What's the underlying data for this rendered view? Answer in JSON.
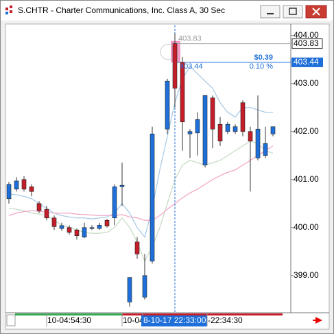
{
  "window": {
    "title": "S.CHTR - Charter Communications, Inc. Class A, 30 Sec"
  },
  "chart_data": {
    "type": "candlestick",
    "open": [
      400.6,
      400.8,
      401.0,
      400.85,
      400.5,
      400.38,
      400.2,
      399.98,
      400.0,
      399.95,
      399.8,
      399.98,
      399.98,
      400.15,
      400.2,
      400.85,
      398.45,
      399.7,
      398.55,
      399.3,
      null,
      402.05,
      403.83,
      403.44,
      401.95,
      401.97,
      401.3,
      402.7,
      402.15,
      402.0,
      402.0,
      402.6,
      402.0,
      401.45,
      401.5,
      401.95
    ],
    "high": [
      400.95,
      401.05,
      401.07,
      400.9,
      400.55,
      400.45,
      400.25,
      400.1,
      400.05,
      399.98,
      400.1,
      400.05,
      400.1,
      400.18,
      400.9,
      401.35,
      398.96,
      399.8,
      399.45,
      402.1,
      null,
      403.1,
      404.05,
      403.55,
      402.05,
      402.4,
      402.75,
      402.75,
      402.3,
      402.2,
      402.15,
      402.65,
      402.1,
      402.75,
      402.1,
      402.1
    ],
    "low": [
      400.5,
      400.75,
      400.75,
      400.65,
      400.3,
      400.15,
      399.95,
      399.93,
      399.85,
      399.75,
      399.78,
      399.95,
      399.95,
      400.0,
      400.05,
      400.45,
      398.35,
      399.35,
      398.5,
      399.25,
      null,
      401.95,
      402.5,
      401.6,
      401.45,
      401.5,
      401.25,
      401.65,
      401.7,
      401.95,
      401.95,
      401.9,
      400.75,
      401.4,
      401.45,
      401.9
    ],
    "close": [
      400.9,
      400.97,
      400.8,
      400.75,
      400.35,
      400.2,
      400.02,
      400.04,
      399.9,
      399.83,
      400.0,
      400.0,
      400.05,
      400.03,
      400.85,
      400.88,
      398.96,
      399.45,
      399.0,
      401.95,
      null,
      403.05,
      402.9,
      402.2,
      402.0,
      402.25,
      402.75,
      402.05,
      401.8,
      402.15,
      402.1,
      402.0,
      401.8,
      402.05,
      401.75,
      402.1
    ],
    "up_color": "#1e6fd9",
    "down_color": "#c41e2a",
    "lines": [
      {
        "color": "#a9cbe8",
        "values": [
          400.7,
          400.68,
          400.65,
          400.6,
          400.5,
          400.4,
          400.3,
          400.25,
          400.22,
          400.2,
          400.2,
          400.18,
          400.2,
          400.22,
          400.3,
          400.5,
          400.3,
          400.0,
          399.8,
          400.4,
          401.2,
          401.9,
          402.6,
          403.1,
          403.35,
          403.2,
          403.05,
          402.9,
          402.6,
          402.4,
          402.3,
          402.5,
          402.5,
          402.45,
          402.4,
          402.4
        ]
      },
      {
        "color": "#c7dcc4",
        "values": [
          400.4,
          400.38,
          400.35,
          400.3,
          400.28,
          400.25,
          400.15,
          400.05,
          400.0,
          399.95,
          399.9,
          399.88,
          399.88,
          399.9,
          400.0,
          400.2,
          400.0,
          399.7,
          399.3,
          399.6,
          400.0,
          400.5,
          401.0,
          401.3,
          401.4,
          401.35,
          401.3,
          401.35,
          401.4,
          401.5,
          401.6,
          401.7,
          401.8,
          401.75,
          401.6,
          401.55
        ]
      },
      {
        "color": "#f2a6c8",
        "values": [
          400.25,
          400.3,
          400.33,
          400.35,
          400.34,
          400.32,
          400.3,
          400.3,
          400.3,
          400.28,
          400.27,
          400.26,
          400.25,
          400.25,
          400.25,
          400.27,
          400.22,
          400.2,
          400.15,
          400.15,
          400.25,
          400.38,
          400.5,
          400.62,
          400.72,
          400.8,
          400.9,
          401.0,
          401.08,
          401.15,
          401.2,
          401.3,
          401.4,
          401.5,
          401.6,
          401.7
        ]
      }
    ],
    "ylim": [
      398.24,
      404.21
    ],
    "yticks": [
      {
        "value": 399,
        "label": "399.00"
      },
      {
        "value": 400,
        "label": "400.00"
      },
      {
        "value": 401,
        "label": "401.00"
      },
      {
        "value": 402,
        "label": "402.00"
      },
      {
        "value": 403,
        "label": "403.00"
      },
      {
        "value": 404,
        "label": "404.00"
      }
    ],
    "reference_price": 403.83,
    "cursor_price": 403.44,
    "change": "$0.39",
    "change_pct": "0.10 %",
    "x_labels": [
      "10-04:54:30",
      "10-04",
      "8-10-17 22:33:00",
      "-22:34:30"
    ]
  }
}
